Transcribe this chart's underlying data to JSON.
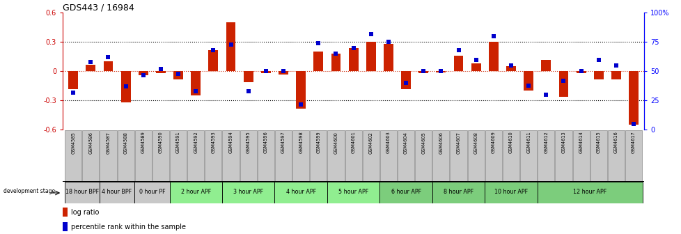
{
  "title": "GDS443 / 16984",
  "samples": [
    "GSM4585",
    "GSM4586",
    "GSM4587",
    "GSM4588",
    "GSM4589",
    "GSM4590",
    "GSM4591",
    "GSM4592",
    "GSM4593",
    "GSM4594",
    "GSM4595",
    "GSM4596",
    "GSM4597",
    "GSM4598",
    "GSM4599",
    "GSM4600",
    "GSM4601",
    "GSM4602",
    "GSM4603",
    "GSM4604",
    "GSM4605",
    "GSM4606",
    "GSM4607",
    "GSM4608",
    "GSM4609",
    "GSM4610",
    "GSM4611",
    "GSM4612",
    "GSM4613",
    "GSM4614",
    "GSM4615",
    "GSM4616",
    "GSM4617"
  ],
  "log_ratio": [
    -0.18,
    0.07,
    0.1,
    -0.32,
    -0.04,
    -0.02,
    -0.08,
    -0.25,
    0.22,
    0.5,
    -0.11,
    -0.02,
    -0.03,
    -0.38,
    0.2,
    0.18,
    0.24,
    0.3,
    0.28,
    -0.18,
    -0.02,
    -0.01,
    0.16,
    0.08,
    0.3,
    0.05,
    -0.2,
    0.12,
    -0.26,
    -0.02,
    -0.08,
    -0.08,
    -0.55
  ],
  "percentile": [
    32,
    58,
    62,
    37,
    47,
    52,
    48,
    33,
    68,
    73,
    33,
    50,
    50,
    22,
    74,
    65,
    70,
    82,
    75,
    40,
    50,
    50,
    68,
    60,
    80,
    55,
    38,
    30,
    42,
    50,
    60,
    55,
    5
  ],
  "stages": [
    {
      "label": "18 hour BPF",
      "start": 0,
      "end": 2,
      "color": "#c8c8c8"
    },
    {
      "label": "4 hour BPF",
      "start": 2,
      "end": 4,
      "color": "#c8c8c8"
    },
    {
      "label": "0 hour PF",
      "start": 4,
      "end": 6,
      "color": "#c8c8c8"
    },
    {
      "label": "2 hour APF",
      "start": 6,
      "end": 9,
      "color": "#90ee90"
    },
    {
      "label": "3 hour APF",
      "start": 9,
      "end": 12,
      "color": "#90ee90"
    },
    {
      "label": "4 hour APF",
      "start": 12,
      "end": 15,
      "color": "#90ee90"
    },
    {
      "label": "5 hour APF",
      "start": 15,
      "end": 18,
      "color": "#90ee90"
    },
    {
      "label": "6 hour APF",
      "start": 18,
      "end": 21,
      "color": "#7ccd7c"
    },
    {
      "label": "8 hour APF",
      "start": 21,
      "end": 24,
      "color": "#7ccd7c"
    },
    {
      "label": "10 hour APF",
      "start": 24,
      "end": 27,
      "color": "#7ccd7c"
    },
    {
      "label": "12 hour APF",
      "start": 27,
      "end": 33,
      "color": "#7ccd7c"
    }
  ],
  "ylim": [
    -0.6,
    0.6
  ],
  "y2lim": [
    0,
    100
  ],
  "bar_color": "#cc2200",
  "dot_color": "#0000cc",
  "background_color": "#ffffff",
  "sample_box_color": "#c8c8c8",
  "sample_box_edge": "#888888"
}
